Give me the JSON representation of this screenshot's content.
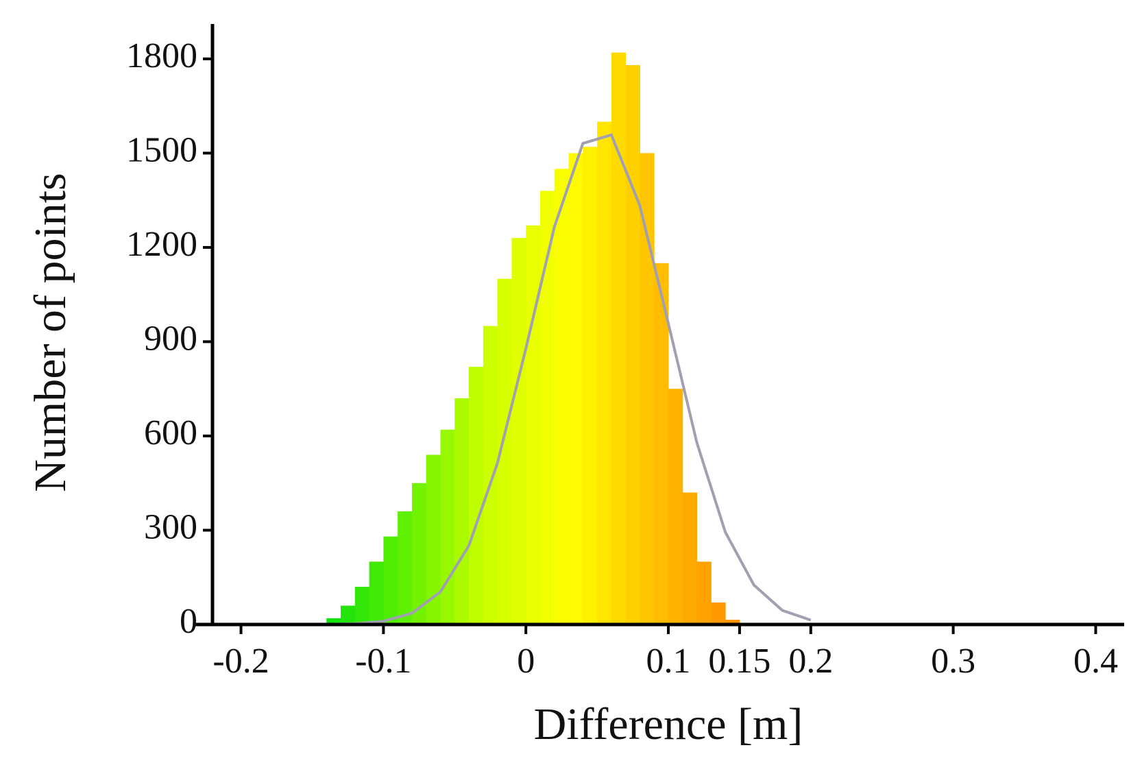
{
  "chart_data": {
    "type": "histogram",
    "xlabel": "Difference [m]",
    "ylabel": "Number of points",
    "bins": [
      -0.15,
      -0.14,
      -0.13,
      -0.12,
      -0.11,
      -0.1,
      -0.09,
      -0.08,
      -0.07,
      -0.06,
      -0.05,
      -0.04,
      -0.03,
      -0.02,
      -0.01,
      0,
      0.01,
      0.02,
      0.03,
      0.04,
      0.05,
      0.06,
      0.07,
      0.08,
      0.09,
      0.1,
      0.11,
      0.12,
      0.13,
      0.14,
      0.15
    ],
    "values": [
      5,
      20,
      60,
      120,
      200,
      280,
      360,
      450,
      540,
      620,
      720,
      820,
      950,
      1100,
      1230,
      1270,
      1380,
      1450,
      1500,
      1520,
      1600,
      1820,
      1780,
      1500,
      1150,
      750,
      420,
      200,
      70,
      15
    ],
    "colormap": [
      "#00dd10",
      "#55ee00",
      "#c8ff00",
      "#ffff00",
      "#ffc000",
      "#ff8c00"
    ],
    "fit": {
      "color": "#a0a0b0",
      "x": [
        -0.2,
        -0.18,
        -0.16,
        -0.14,
        -0.12,
        -0.1,
        -0.08,
        -0.06,
        -0.04,
        -0.02,
        0,
        0.02,
        0.04,
        0.06,
        0.08,
        0.1,
        0.12,
        0.14,
        0.16,
        0.18,
        0.2
      ],
      "values": [
        0,
        0,
        0,
        0.5,
        2.6,
        10.5,
        36,
        104,
        251,
        513,
        878,
        1265,
        1531,
        1558,
        1333,
        958,
        579,
        294,
        126,
        45,
        14
      ]
    },
    "xlim": [
      -0.22,
      0.42
    ],
    "xticks": [
      -0.2,
      -0.1,
      0,
      0.1,
      0.15,
      0.2,
      0.3,
      0.4
    ],
    "ylim": [
      0,
      1900
    ],
    "yticks": [
      0,
      300,
      600,
      900,
      1200,
      1500,
      1800
    ]
  }
}
